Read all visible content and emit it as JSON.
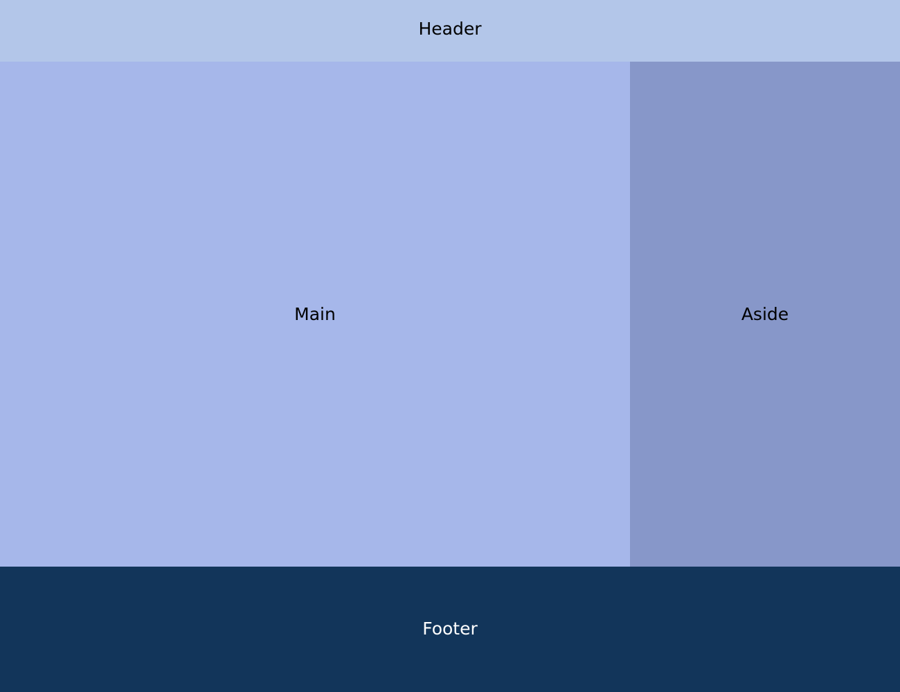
{
  "regions": {
    "header": {
      "label": "Header"
    },
    "main": {
      "label": "Main"
    },
    "aside": {
      "label": "Aside"
    },
    "footer": {
      "label": "Footer"
    }
  },
  "colors": {
    "header_bg": "#b3c6e9",
    "main_bg": "#a6b7ea",
    "aside_bg": "#8797c9",
    "footer_bg": "#12355a",
    "footer_text": "#ffffff",
    "text": "#000000"
  }
}
